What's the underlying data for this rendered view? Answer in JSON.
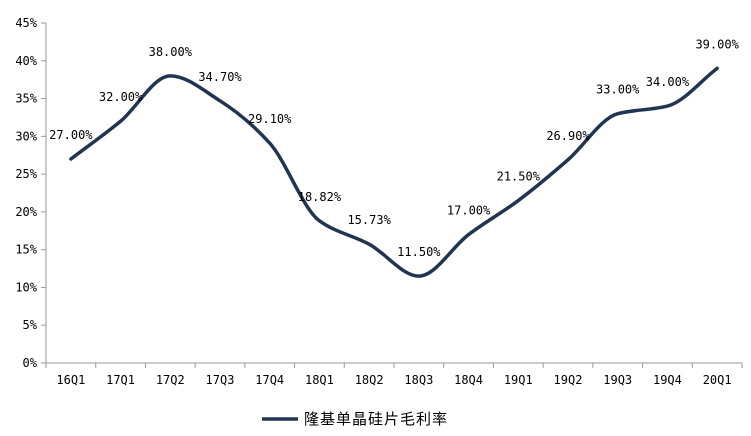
{
  "chart_data": {
    "type": "line",
    "categories": [
      "16Q1",
      "17Q1",
      "17Q2",
      "17Q3",
      "17Q4",
      "18Q1",
      "18Q2",
      "18Q3",
      "18Q4",
      "19Q1",
      "19Q2",
      "19Q3",
      "19Q4",
      "20Q1"
    ],
    "series": [
      {
        "name": "隆基单晶硅片毛利率",
        "values": [
          27.0,
          32.0,
          38.0,
          34.7,
          29.1,
          18.82,
          15.73,
          11.5,
          17.0,
          21.5,
          26.9,
          33.0,
          34.0,
          39.0
        ],
        "labels": [
          "27.00%",
          "32.00%",
          "38.00%",
          "34.70%",
          "29.10%",
          "18.82%",
          "15.73%",
          "11.50%",
          "17.00%",
          "21.50%",
          "26.90%",
          "33.00%",
          "34.00%",
          "39.00%"
        ],
        "color": "#1f3552"
      }
    ],
    "yticks": [
      "0%",
      "5%",
      "10%",
      "15%",
      "20%",
      "25%",
      "30%",
      "35%",
      "40%",
      "45%"
    ],
    "ylim": [
      0,
      45
    ],
    "smooth": true,
    "grid": false,
    "legend_position": "bottom-center"
  }
}
